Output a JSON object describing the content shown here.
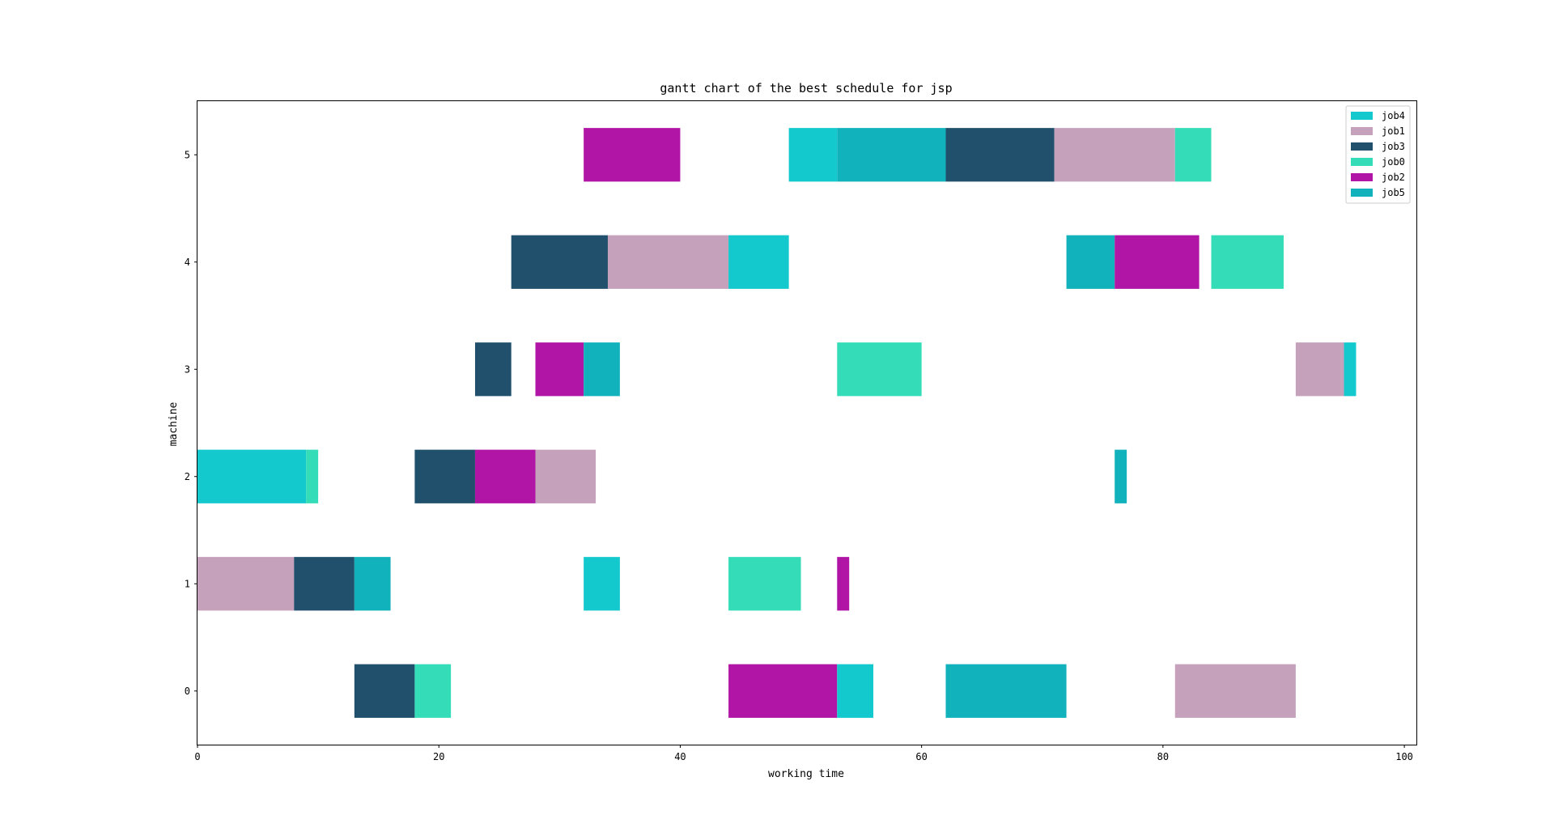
{
  "chart_data": {
    "type": "gantt",
    "title": "gantt chart of the best schedule for jsp",
    "xlabel": "working time",
    "ylabel": "machine",
    "xlim": [
      0,
      101
    ],
    "ylim": [
      -0.5,
      5.5
    ],
    "xticks": [
      0,
      20,
      40,
      60,
      80,
      100
    ],
    "yticks": [
      0,
      1,
      2,
      3,
      4,
      5
    ],
    "legend_position": "top-right",
    "bar_height": 0.5,
    "jobs": [
      {
        "name": "job4",
        "color": "#13c9cd"
      },
      {
        "name": "job1",
        "color": "#c5a1bc"
      },
      {
        "name": "job3",
        "color": "#20506c"
      },
      {
        "name": "job0",
        "color": "#34ddb8"
      },
      {
        "name": "job2",
        "color": "#b015a5"
      },
      {
        "name": "job5",
        "color": "#11b2bc"
      }
    ],
    "tasks": [
      {
        "machine": 5,
        "job": "job2",
        "start": 32,
        "end": 40
      },
      {
        "machine": 5,
        "job": "job4",
        "start": 49,
        "end": 53
      },
      {
        "machine": 5,
        "job": "job5",
        "start": 53,
        "end": 62
      },
      {
        "machine": 5,
        "job": "job3",
        "start": 62,
        "end": 71
      },
      {
        "machine": 5,
        "job": "job1",
        "start": 71,
        "end": 81
      },
      {
        "machine": 5,
        "job": "job0",
        "start": 81,
        "end": 84
      },
      {
        "machine": 4,
        "job": "job3",
        "start": 26,
        "end": 34
      },
      {
        "machine": 4,
        "job": "job1",
        "start": 34,
        "end": 44
      },
      {
        "machine": 4,
        "job": "job4",
        "start": 44,
        "end": 49
      },
      {
        "machine": 4,
        "job": "job5",
        "start": 72,
        "end": 76
      },
      {
        "machine": 4,
        "job": "job2",
        "start": 76,
        "end": 83
      },
      {
        "machine": 4,
        "job": "job0",
        "start": 84,
        "end": 90
      },
      {
        "machine": 3,
        "job": "job3",
        "start": 23,
        "end": 26
      },
      {
        "machine": 3,
        "job": "job2",
        "start": 28,
        "end": 32
      },
      {
        "machine": 3,
        "job": "job5",
        "start": 32,
        "end": 35
      },
      {
        "machine": 3,
        "job": "job0",
        "start": 53,
        "end": 60
      },
      {
        "machine": 3,
        "job": "job1",
        "start": 91,
        "end": 95
      },
      {
        "machine": 3,
        "job": "job4",
        "start": 95,
        "end": 96
      },
      {
        "machine": 2,
        "job": "job4",
        "start": 0,
        "end": 9
      },
      {
        "machine": 2,
        "job": "job0",
        "start": 9,
        "end": 10
      },
      {
        "machine": 2,
        "job": "job3",
        "start": 18,
        "end": 23
      },
      {
        "machine": 2,
        "job": "job2",
        "start": 23,
        "end": 28
      },
      {
        "machine": 2,
        "job": "job1",
        "start": 28,
        "end": 33
      },
      {
        "machine": 2,
        "job": "job5",
        "start": 76,
        "end": 77
      },
      {
        "machine": 1,
        "job": "job1",
        "start": 0,
        "end": 8
      },
      {
        "machine": 1,
        "job": "job3",
        "start": 8,
        "end": 13
      },
      {
        "machine": 1,
        "job": "job5",
        "start": 13,
        "end": 16
      },
      {
        "machine": 1,
        "job": "job4",
        "start": 32,
        "end": 35
      },
      {
        "machine": 1,
        "job": "job0",
        "start": 44,
        "end": 50
      },
      {
        "machine": 1,
        "job": "job2",
        "start": 53,
        "end": 54
      },
      {
        "machine": 0,
        "job": "job3",
        "start": 13,
        "end": 18
      },
      {
        "machine": 0,
        "job": "job0",
        "start": 18,
        "end": 21
      },
      {
        "machine": 0,
        "job": "job2",
        "start": 44,
        "end": 53
      },
      {
        "machine": 0,
        "job": "job4",
        "start": 53,
        "end": 56
      },
      {
        "machine": 0,
        "job": "job5",
        "start": 62,
        "end": 72
      },
      {
        "machine": 0,
        "job": "job1",
        "start": 81,
        "end": 91
      }
    ]
  }
}
